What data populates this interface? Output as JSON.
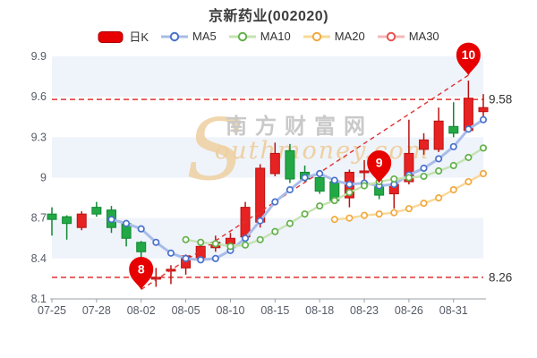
{
  "title": "京新药业(002020)",
  "legend": [
    {
      "label": "日K",
      "type": "candle",
      "color": "#e60000",
      "border": "#a80000"
    },
    {
      "label": "MA5",
      "type": "line",
      "ring": "#4a72cc",
      "line": "#a9bce8"
    },
    {
      "label": "MA10",
      "type": "line",
      "ring": "#62b14a",
      "line": "#c5e2b2"
    },
    {
      "label": "MA20",
      "type": "line",
      "ring": "#f2a93e",
      "line": "#f8d897"
    },
    {
      "label": "MA30",
      "type": "line",
      "ring": "#e85050",
      "line": "#f5b8b8"
    }
  ],
  "watermark": {
    "initial": "S",
    "cn": "南方财富网",
    "en": "outhmoney.com"
  },
  "chart_data": {
    "type": "candlestick",
    "ylim": [
      8.1,
      9.9
    ],
    "yticks": [
      {
        "v": 9.9,
        "label": "9.9"
      },
      {
        "v": 9.6,
        "label": "9.6"
      },
      {
        "v": 9.3,
        "label": "9.3"
      },
      {
        "v": 9.0,
        "label": "9"
      },
      {
        "v": 8.7,
        "label": "8.7"
      },
      {
        "v": 8.4,
        "label": "8.4"
      },
      {
        "v": 8.1,
        "label": "8.1"
      }
    ],
    "xticks": [
      {
        "day": 0,
        "label": "07-25"
      },
      {
        "day": 3,
        "label": "07-28"
      },
      {
        "day": 6,
        "label": "08-02"
      },
      {
        "day": 9,
        "label": "08-05"
      },
      {
        "day": 12,
        "label": "08-10"
      },
      {
        "day": 15,
        "label": "08-15"
      },
      {
        "day": 18,
        "label": "08-18"
      },
      {
        "day": 21,
        "label": "08-23"
      },
      {
        "day": 24,
        "label": "08-26"
      },
      {
        "day": 27,
        "label": "08-31"
      }
    ],
    "candle_format": "[open, high, low, close]",
    "candles": [
      [
        8.73,
        8.78,
        8.57,
        8.69
      ],
      [
        8.71,
        8.72,
        8.54,
        8.66
      ],
      [
        8.63,
        8.75,
        8.61,
        8.73
      ],
      [
        8.78,
        8.82,
        8.71,
        8.73
      ],
      [
        8.76,
        8.79,
        8.59,
        8.63
      ],
      [
        8.66,
        8.67,
        8.49,
        8.55
      ],
      [
        8.52,
        8.53,
        8.2,
        8.45
      ],
      [
        8.25,
        8.33,
        8.19,
        8.26
      ],
      [
        8.32,
        8.35,
        8.21,
        8.32
      ],
      [
        8.33,
        8.43,
        8.28,
        8.42
      ],
      [
        8.4,
        8.51,
        8.38,
        8.49
      ],
      [
        8.48,
        8.57,
        8.45,
        8.52
      ],
      [
        8.51,
        8.59,
        8.48,
        8.55
      ],
      [
        8.56,
        8.82,
        8.52,
        8.78
      ],
      [
        8.67,
        9.1,
        8.63,
        9.07
      ],
      [
        9.03,
        9.26,
        9.01,
        9.18
      ],
      [
        9.2,
        9.25,
        8.96,
        8.99
      ],
      [
        9.04,
        9.09,
        8.97,
        8.99
      ],
      [
        9.0,
        9.03,
        8.88,
        8.9
      ],
      [
        8.97,
        9.0,
        8.81,
        8.83
      ],
      [
        8.85,
        9.06,
        8.78,
        9.04
      ],
      [
        9.05,
        9.13,
        8.94,
        9.05
      ],
      [
        8.95,
        8.97,
        8.84,
        8.87
      ],
      [
        8.88,
        8.97,
        8.77,
        8.95
      ],
      [
        8.97,
        9.43,
        8.95,
        9.18
      ],
      [
        9.21,
        9.33,
        9.17,
        9.28
      ],
      [
        9.21,
        9.52,
        9.19,
        9.42
      ],
      [
        9.38,
        9.56,
        9.3,
        9.33
      ],
      [
        9.35,
        9.72,
        9.34,
        9.59
      ],
      [
        9.49,
        9.62,
        9.43,
        9.52
      ]
    ],
    "series": [
      {
        "name": "MA5",
        "start_day": 4,
        "values": [
          8.69,
          8.66,
          8.62,
          8.52,
          8.44,
          8.4,
          8.39,
          8.4,
          8.46,
          8.55,
          8.68,
          8.82,
          8.91,
          9.0,
          9.03,
          8.98,
          8.95,
          8.96,
          8.94,
          8.95,
          9.02,
          9.07,
          9.14,
          9.23,
          9.36,
          9.43
        ]
      },
      {
        "name": "MA10",
        "start_day": 9,
        "values": [
          8.54,
          8.52,
          8.51,
          8.49,
          8.5,
          8.54,
          8.6,
          8.66,
          8.73,
          8.79,
          8.83,
          8.89,
          8.94,
          8.97,
          8.99,
          9.0,
          9.01,
          9.05,
          9.09,
          9.15,
          9.22
        ]
      },
      {
        "name": "MA20",
        "start_day": 19,
        "values": [
          8.69,
          8.7,
          8.72,
          8.73,
          8.74,
          8.77,
          8.81,
          8.85,
          8.91,
          8.97,
          9.03
        ]
      },
      {
        "name": "MA30",
        "start_day": 0,
        "values": []
      }
    ],
    "hlines": [
      {
        "value": 9.58,
        "label": "9.58"
      },
      {
        "value": 8.26,
        "label": "8.26"
      }
    ],
    "trendline": {
      "from_day": 6,
      "from_value": 8.17,
      "to_day": 28,
      "to_value": 9.76
    },
    "balloons": [
      {
        "label": "8",
        "day": 6,
        "tip_value": 8.17
      },
      {
        "label": "9",
        "day": 22,
        "tip_value": 8.96
      },
      {
        "label": "10",
        "day": 28,
        "tip_value": 9.76
      }
    ],
    "colors": {
      "up": "#e62222",
      "up_border": "#bb1111",
      "down": "#22a845",
      "down_border": "#118833",
      "band": "#eff3fa",
      "axis": "#9aa0a6",
      "tick_text": "#555b66",
      "dash": "#e03030",
      "right_label": "#333333",
      "balloon": "#e60000",
      "watermark_cn": "#c9c9c9",
      "watermark_en": "#eed0a0"
    },
    "legend_position": "top",
    "grid": "alternating-bands"
  }
}
